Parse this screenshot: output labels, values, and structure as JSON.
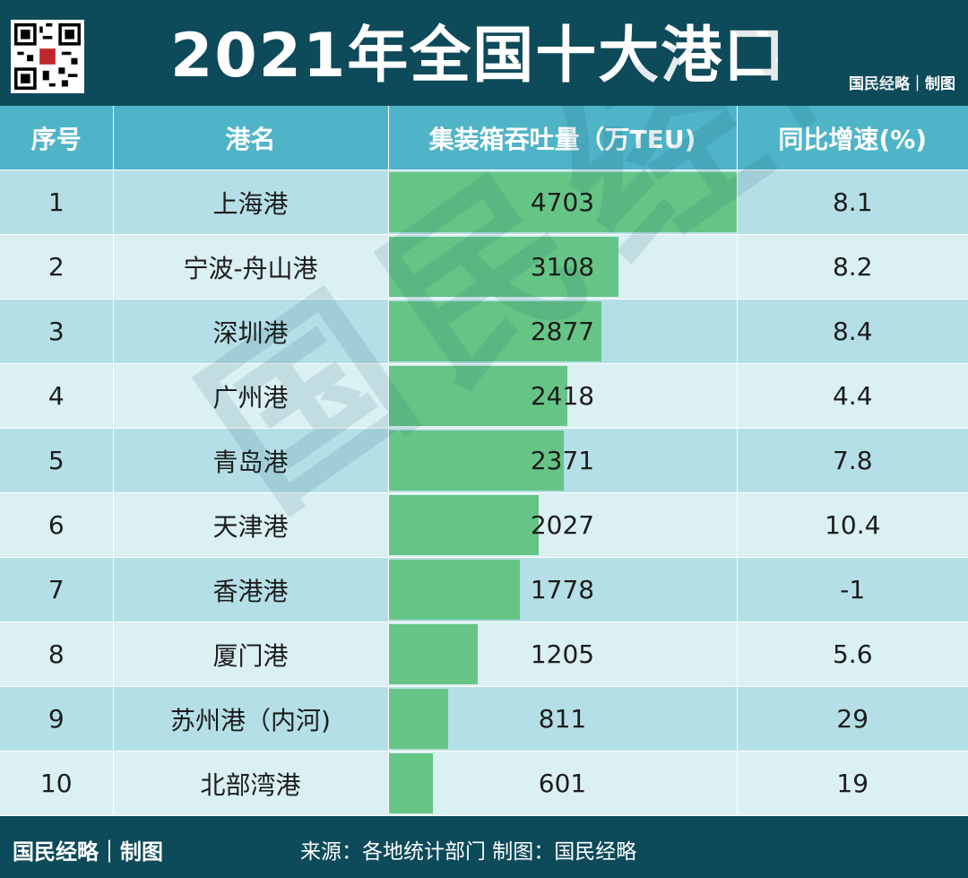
{
  "header": {
    "title": "2021年全国十大港口",
    "brand": "国民经略｜制图",
    "qr_icon": "qr-code-icon"
  },
  "table": {
    "columns": [
      "序号",
      "港名",
      "集装箱吞吐量（万TEU)",
      "同比增速(%)"
    ]
  },
  "chart_data": {
    "type": "table",
    "title": "2021年全国十大港口",
    "columns": [
      "序号",
      "港名",
      "集装箱吞吐量（万TEU)",
      "同比增速(%)"
    ],
    "rows": [
      {
        "rank": "1",
        "port": "上海港",
        "throughput": 4703,
        "growth": "8.1"
      },
      {
        "rank": "2",
        "port": "宁波-舟山港",
        "throughput": 3108,
        "growth": "8.2"
      },
      {
        "rank": "3",
        "port": "深圳港",
        "throughput": 2877,
        "growth": "8.4"
      },
      {
        "rank": "4",
        "port": "广州港",
        "throughput": 2418,
        "growth": "4.4"
      },
      {
        "rank": "5",
        "port": "青岛港",
        "throughput": 2371,
        "growth": "7.8"
      },
      {
        "rank": "6",
        "port": "天津港",
        "throughput": 2027,
        "growth": "10.4"
      },
      {
        "rank": "7",
        "port": "香港港",
        "throughput": 1778,
        "growth": "-1"
      },
      {
        "rank": "8",
        "port": "厦门港",
        "throughput": 1205,
        "growth": "5.6"
      },
      {
        "rank": "9",
        "port": "苏州港（内河)",
        "throughput": 811,
        "growth": "29"
      },
      {
        "rank": "10",
        "port": "北部湾港",
        "throughput": 601,
        "growth": "19"
      }
    ],
    "bar_max": 4703,
    "bar_color": "#66c586"
  },
  "watermark": "国民经略",
  "footer": {
    "brand": "国民经略｜制图",
    "source": "来源：各地统计部门 制图：国民经略"
  },
  "colors": {
    "dark": "#0d4a5a",
    "header_cell": "#4fb4c7",
    "row_odd": "#b5dfe6",
    "row_even": "#daf0f3",
    "bar": "#66c586"
  }
}
